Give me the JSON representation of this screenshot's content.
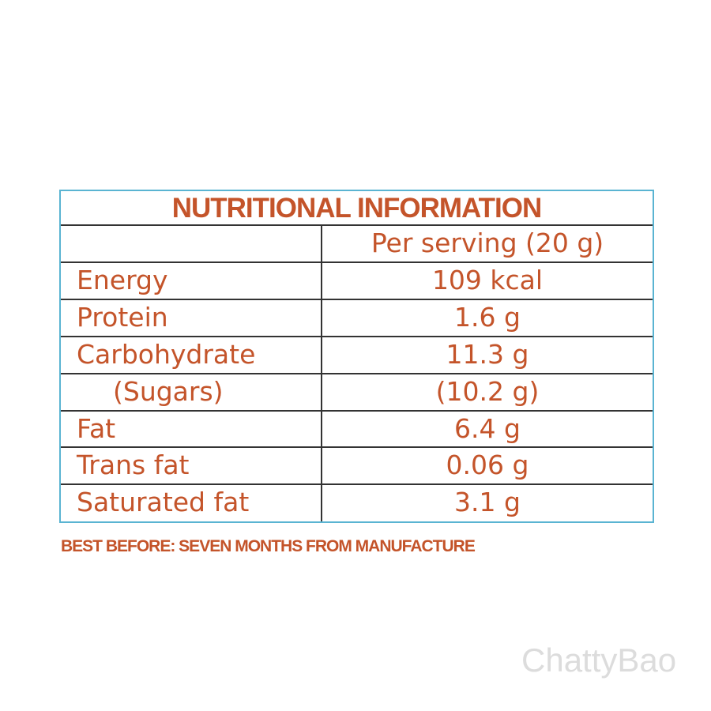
{
  "header": {
    "title": "NUTRITIONAL INFORMATION"
  },
  "table": {
    "column_header": "Per serving (20 g)",
    "rows": [
      [
        "Energy",
        "109 kcal"
      ],
      [
        "Protein",
        "1.6 g"
      ],
      [
        "Carbohydrate",
        "11.3 g"
      ],
      [
        "(Sugars)",
        "(10.2 g)"
      ],
      [
        "Fat",
        "6.4 g"
      ],
      [
        "Trans fat",
        "0.06 g"
      ],
      [
        "Saturated fat",
        "3.1 g"
      ]
    ]
  },
  "footer": "BEST BEFORE: SEVEN MONTHS FROM MANUFACTURE",
  "watermark": "ChattyBao"
}
